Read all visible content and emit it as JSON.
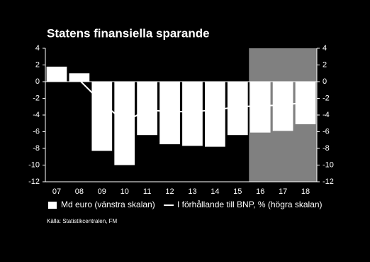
{
  "chart_data": {
    "type": "bar",
    "title": "Statens finansiella sparande",
    "categories": [
      "07",
      "08",
      "09",
      "10",
      "11",
      "12",
      "13",
      "14",
      "15",
      "16",
      "17",
      "18"
    ],
    "series": [
      {
        "name": "Md euro (vänstra skalan)",
        "type": "bar",
        "color": "#ffffff",
        "values": [
          1.8,
          1.0,
          -8.3,
          -10.0,
          -6.4,
          -7.5,
          -7.7,
          -7.8,
          -6.4,
          -6.1,
          -5.9,
          -5.1
        ]
      },
      {
        "name": "I förhållande till BNP, % (högra skalan)",
        "type": "line",
        "axis": "y2",
        "color": "#ffffff",
        "values": [
          null,
          0.2,
          -2.5,
          -4.8,
          -3.4,
          -3.6,
          -3.6,
          -3.4,
          -3.0,
          -2.9,
          -2.8,
          -2.5
        ]
      }
    ],
    "ylim": [
      -12,
      4
    ],
    "yticks": [
      -12,
      -10,
      -8,
      -6,
      -4,
      -2,
      0,
      2,
      4
    ],
    "y2lim": [
      -12,
      4
    ],
    "y2ticks": [
      -12,
      -10,
      -8,
      -6,
      -4,
      -2,
      0,
      2,
      4
    ],
    "source": "Källa: Statistikcentralen, FM"
  }
}
